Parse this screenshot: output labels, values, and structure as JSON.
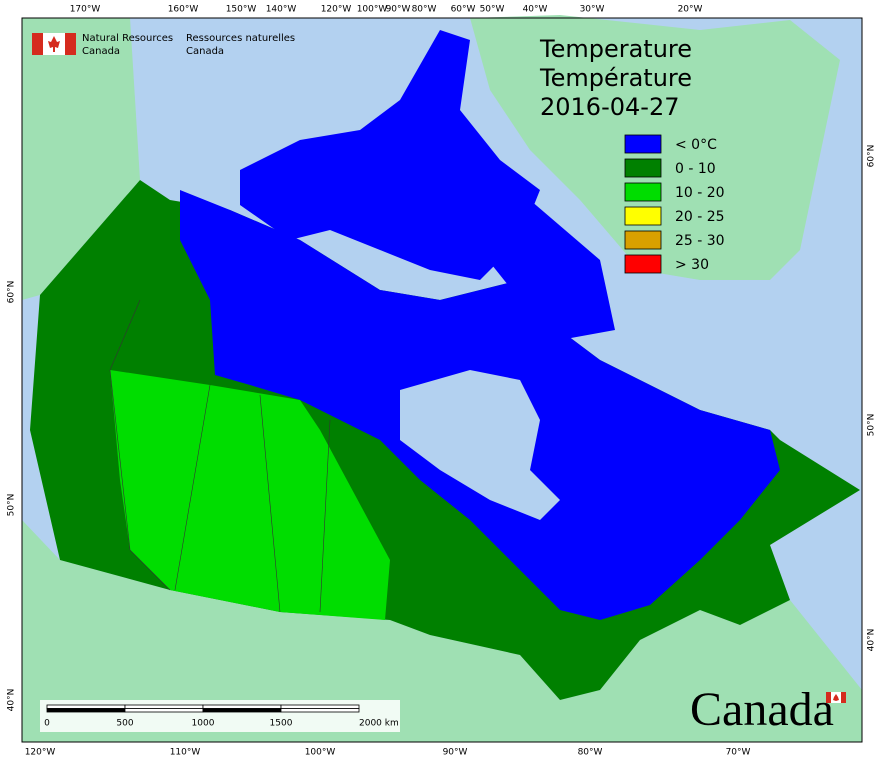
{
  "header": {
    "org_en_1": "Natural Resources",
    "org_en_2": "Canada",
    "org_fr_1": "Ressources naturelles",
    "org_fr_2": "Canada"
  },
  "title": {
    "line_en": "Temperature",
    "line_fr": "Température",
    "date": "2016-04-27"
  },
  "legend": [
    {
      "label": "< 0°C",
      "color": "#0000ff"
    },
    {
      "label": "0 - 10",
      "color": "#008000"
    },
    {
      "label": "10 - 20",
      "color": "#00dd00"
    },
    {
      "label": "20 - 25",
      "color": "#ffff00"
    },
    {
      "label": "25 - 30",
      "color": "#d9a000"
    },
    {
      "label": "> 30",
      "color": "#ff0000"
    }
  ],
  "graticule": {
    "top": [
      "170°W",
      "160°W",
      "150°W",
      "140°W",
      "120°W",
      "100°W",
      "90°W",
      "80°W",
      "60°W",
      "50°W",
      "40°W",
      "30°W",
      "20°W"
    ],
    "bottom": [
      "120°W",
      "110°W",
      "100°W",
      "90°W",
      "80°W",
      "70°W"
    ],
    "left": [
      "60°N",
      "50°N",
      "40°N"
    ],
    "right": [
      "60°N",
      "50°N",
      "40°N"
    ]
  },
  "scale_bar": {
    "labels": [
      "0",
      "500",
      "1000",
      "1500",
      "2000 km"
    ]
  },
  "wordmark": "Canada"
}
